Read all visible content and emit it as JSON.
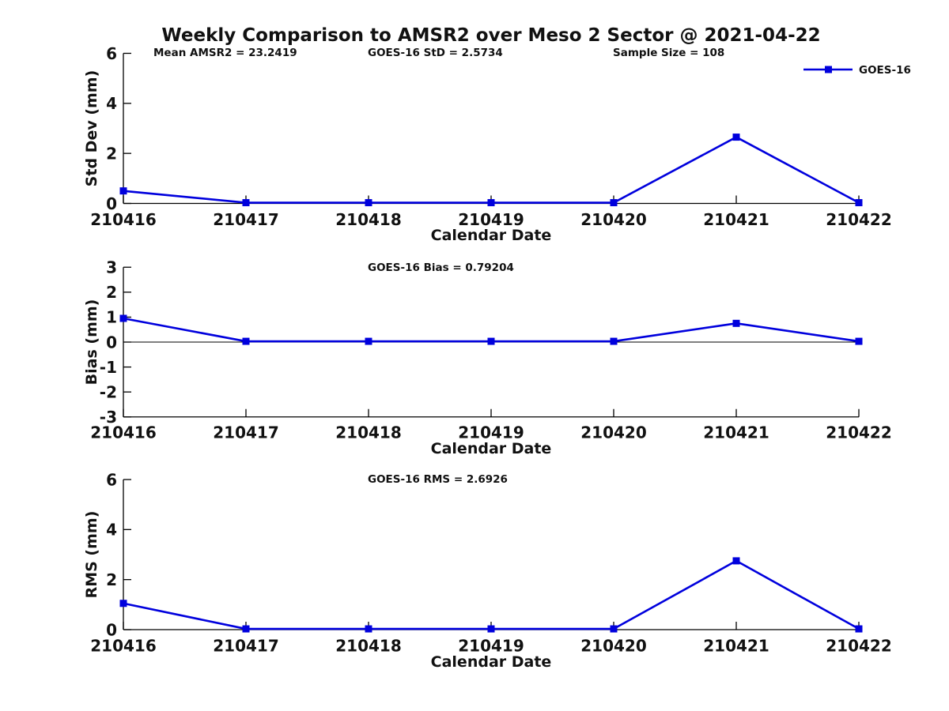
{
  "title": "Weekly Comparison to AMSR2 over Meso 2 Sector @ 2021-04-22",
  "header": {
    "mean_annotation": "Mean AMSR2 = 23.2419",
    "std_annotation": "GOES-16 StD = 2.5734",
    "sample_annotation": "Sample Size = 108"
  },
  "legend": {
    "label": "GOES-16",
    "position": "top-right"
  },
  "colors": {
    "line": "#0000DD",
    "axis": "#000000",
    "text": "#111111",
    "background": "#ffffff"
  },
  "chart_data": [
    {
      "type": "line",
      "panel": "std-dev",
      "annotation": "",
      "ylabel": "Std Dev (mm)",
      "xlabel": "Calendar Date",
      "categories": [
        "210416",
        "210417",
        "210418",
        "210419",
        "210420",
        "210421",
        "210422"
      ],
      "series": [
        {
          "name": "GOES-16",
          "values": [
            0.5,
            0.03,
            0.03,
            0.03,
            0.03,
            2.65,
            0.03
          ]
        }
      ],
      "ylim": [
        0,
        6
      ],
      "yticks": [
        0,
        2,
        4,
        6
      ],
      "zero_line": false,
      "grid": false
    },
    {
      "type": "line",
      "panel": "bias",
      "annotation": "GOES-16 Bias  = 0.79204",
      "ylabel": "Bias (mm)",
      "xlabel": "Calendar Date",
      "categories": [
        "210416",
        "210417",
        "210418",
        "210419",
        "210420",
        "210421",
        "210422"
      ],
      "series": [
        {
          "name": "GOES-16",
          "values": [
            0.95,
            0.03,
            0.03,
            0.03,
            0.03,
            0.75,
            0.03
          ]
        }
      ],
      "ylim": [
        -3,
        3
      ],
      "yticks": [
        -3,
        -2,
        -1,
        0,
        1,
        2,
        3
      ],
      "zero_line": true,
      "grid": false
    },
    {
      "type": "line",
      "panel": "rms",
      "annotation": "GOES-16 RMS = 2.6926",
      "ylabel": "RMS (mm)",
      "xlabel": "Calendar Date",
      "categories": [
        "210416",
        "210417",
        "210418",
        "210419",
        "210420",
        "210421",
        "210422"
      ],
      "series": [
        {
          "name": "GOES-16",
          "values": [
            1.05,
            0.03,
            0.03,
            0.03,
            0.03,
            2.75,
            0.03
          ]
        }
      ],
      "ylim": [
        0,
        6
      ],
      "yticks": [
        0,
        2,
        4,
        6
      ],
      "zero_line": false,
      "grid": false
    }
  ]
}
